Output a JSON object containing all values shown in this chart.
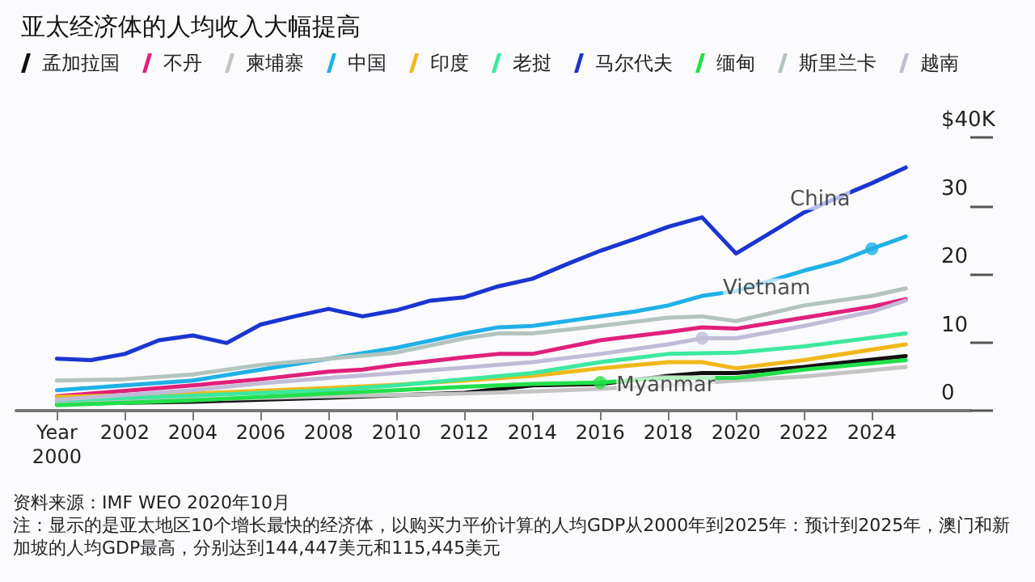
{
  "chart_data": {
    "type": "line",
    "title": "亚太经济体的人均收入大幅提高",
    "xlim": [
      1998.8,
      2026.9
    ],
    "xticks": [
      {
        "value": 2000,
        "label": "Year\n2000"
      },
      2002,
      2004,
      2006,
      2008,
      2010,
      2012,
      2014,
      2016,
      2018,
      2020,
      2022,
      2024
    ],
    "ylim": [
      0,
      40
    ],
    "yticks": [
      0,
      10,
      20,
      30,
      {
        "value": 40,
        "label": "$40K"
      }
    ],
    "grid": false,
    "legend": "top left",
    "marker": "none",
    "line_style": "solid",
    "series": [
      {
        "name": "孟加拉国",
        "color": "#111111",
        "x": [
          2000,
          2004,
          2008,
          2012,
          2014,
          2016,
          2018,
          2019,
          2020,
          2022,
          2025
        ],
        "values": [
          1.0,
          1.3,
          1.9,
          2.6,
          3.7,
          3.9,
          5.1,
          5.5,
          5.5,
          6.4,
          8.0
        ]
      },
      {
        "name": "不丹",
        "color": "#e0207a",
        "x": [
          2000,
          2004,
          2006,
          2008,
          2009,
          2010,
          2012,
          2013,
          2014,
          2016,
          2018,
          2019,
          2020,
          2022,
          2024,
          2025
        ],
        "values": [
          2.1,
          3.7,
          4.6,
          5.7,
          6.0,
          6.7,
          7.8,
          8.3,
          8.3,
          10.3,
          11.5,
          12.2,
          12.0,
          13.6,
          15.2,
          16.3
        ]
      },
      {
        "name": "柬埔寨",
        "color": "#c4c4c4",
        "x": [
          2000,
          2004,
          2008,
          2012,
          2014,
          2016,
          2018,
          2020,
          2022,
          2025
        ],
        "values": [
          1.2,
          1.6,
          2.1,
          2.5,
          2.8,
          3.2,
          3.7,
          4.4,
          5.0,
          6.4
        ]
      },
      {
        "name": "中国",
        "color": "#1fb1e6",
        "x": [
          2000,
          2002,
          2004,
          2006,
          2008,
          2010,
          2012,
          2013,
          2014,
          2016,
          2017,
          2018,
          2019,
          2020,
          2022,
          2023,
          2024,
          2025
        ],
        "values": [
          3.0,
          3.7,
          4.4,
          6.0,
          7.6,
          9.2,
          11.3,
          12.2,
          12.4,
          13.8,
          14.5,
          15.4,
          16.8,
          17.5,
          20.5,
          21.8,
          23.7,
          25.5
        ]
      },
      {
        "name": "印度",
        "color": "#f0b81a",
        "x": [
          2000,
          2004,
          2008,
          2010,
          2012,
          2014,
          2016,
          2018,
          2019,
          2020,
          2022,
          2025
        ],
        "values": [
          2.0,
          2.5,
          3.3,
          3.8,
          4.4,
          5.1,
          6.2,
          7.1,
          7.1,
          6.2,
          7.4,
          9.7
        ]
      },
      {
        "name": "老挝",
        "color": "#3de8a0",
        "x": [
          2000,
          2004,
          2008,
          2010,
          2012,
          2014,
          2016,
          2018,
          2020,
          2022,
          2025
        ],
        "values": [
          1.5,
          2.2,
          3.0,
          3.7,
          4.6,
          5.5,
          7.1,
          8.3,
          8.5,
          9.4,
          11.3
        ]
      },
      {
        "name": "马尔代夫",
        "color": "#1a35d0",
        "x": [
          2000,
          2001,
          2002,
          2003,
          2004,
          2005,
          2006,
          2007,
          2008,
          2009,
          2010,
          2011,
          2012,
          2013,
          2014,
          2015,
          2016,
          2017,
          2018,
          2019,
          2020,
          2021,
          2022,
          2023,
          2024,
          2025
        ],
        "values": [
          7.6,
          7.4,
          8.3,
          10.3,
          11.0,
          9.9,
          12.6,
          13.8,
          14.9,
          13.8,
          14.7,
          16.1,
          16.6,
          18.2,
          19.3,
          21.4,
          23.4,
          25.1,
          26.9,
          28.3,
          23.0,
          26.0,
          29.0,
          31.2,
          33.3,
          35.6
        ]
      },
      {
        "name": "缅甸",
        "color": "#22e04a",
        "x": [
          2000,
          2004,
          2008,
          2012,
          2014,
          2016,
          2018,
          2020,
          2022,
          2025
        ],
        "values": [
          0.8,
          1.5,
          2.5,
          3.5,
          3.9,
          4.1,
          4.8,
          4.8,
          6.0,
          7.4
        ]
      },
      {
        "name": "斯里兰卡",
        "color": "#b4c4be",
        "x": [
          2000,
          2002,
          2004,
          2006,
          2008,
          2010,
          2012,
          2013,
          2014,
          2016,
          2018,
          2019,
          2020,
          2022,
          2024,
          2025
        ],
        "values": [
          4.4,
          4.6,
          5.3,
          6.7,
          7.6,
          8.5,
          10.6,
          11.3,
          11.3,
          12.4,
          13.6,
          13.8,
          13.1,
          15.4,
          16.8,
          17.9
        ]
      },
      {
        "name": "越南",
        "color": "#c0bcd8",
        "x": [
          2000,
          2004,
          2006,
          2008,
          2010,
          2012,
          2014,
          2016,
          2018,
          2019,
          2020,
          2022,
          2024,
          2025
        ],
        "values": [
          1.6,
          3.0,
          4.0,
          4.8,
          5.5,
          6.3,
          7.1,
          8.3,
          9.7,
          10.6,
          10.6,
          12.4,
          14.5,
          16.1
        ]
      }
    ],
    "annotations": [
      {
        "text": "China",
        "x": 2024,
        "y": 23.7
      },
      {
        "text": "Vietnam",
        "x": 2019,
        "y": 10.6
      },
      {
        "text": "Myanmar",
        "x": 2016,
        "y": 4.1
      },
      "资料来源：IMF WEO 2020年10月",
      "注：显示的是亚太地区10个增长最快的经济体，以购买力平价计算的人均GDP从2000年到2025年：预计到2025年，澳门和新加坡的人均GDP最高，分别达到144,447美元和115,445美元"
    ]
  }
}
